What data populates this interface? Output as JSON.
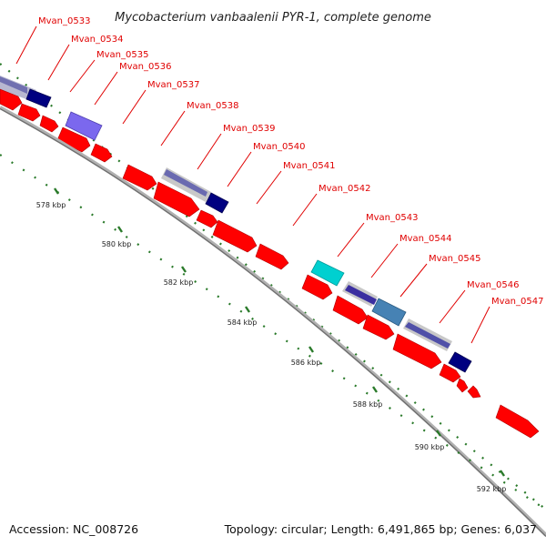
{
  "title": "Mycobacterium vanbaalenii PYR-1, complete genome",
  "accession": "Accession: NC_008726",
  "topology": "Topology: circular; Length: 6,491,865 bp; Genes: 6,037",
  "colors": {
    "forward_gene": "#ff0000",
    "backbone": "#9a9a9a",
    "label": "#e00000",
    "tick": "#2a7a2a",
    "cog_gray": "#c8c8c8",
    "cog_navy": "#000080",
    "cog_purple": "#7b68ee",
    "cog_slate": "#6a5acd",
    "cog_cyan": "#00d0d0",
    "cog_steel": "#4682b4"
  },
  "scale_labels": [
    "578 kbp",
    "580 kbp",
    "582 kbp",
    "584 kbp",
    "586 kbp",
    "588 kbp",
    "590 kbp",
    "592 kbp"
  ],
  "gene_labels": [
    "Mvan_0533",
    "Mvan_0534",
    "Mvan_0535",
    "Mvan_0536",
    "Mvan_0537",
    "Mvan_0538",
    "Mvan_0539",
    "Mvan_0540",
    "Mvan_0541",
    "Mvan_0542",
    "Mvan_0543",
    "Mvan_0544",
    "Mvan_0545",
    "Mvan_0546",
    "Mvan_0547"
  ]
}
